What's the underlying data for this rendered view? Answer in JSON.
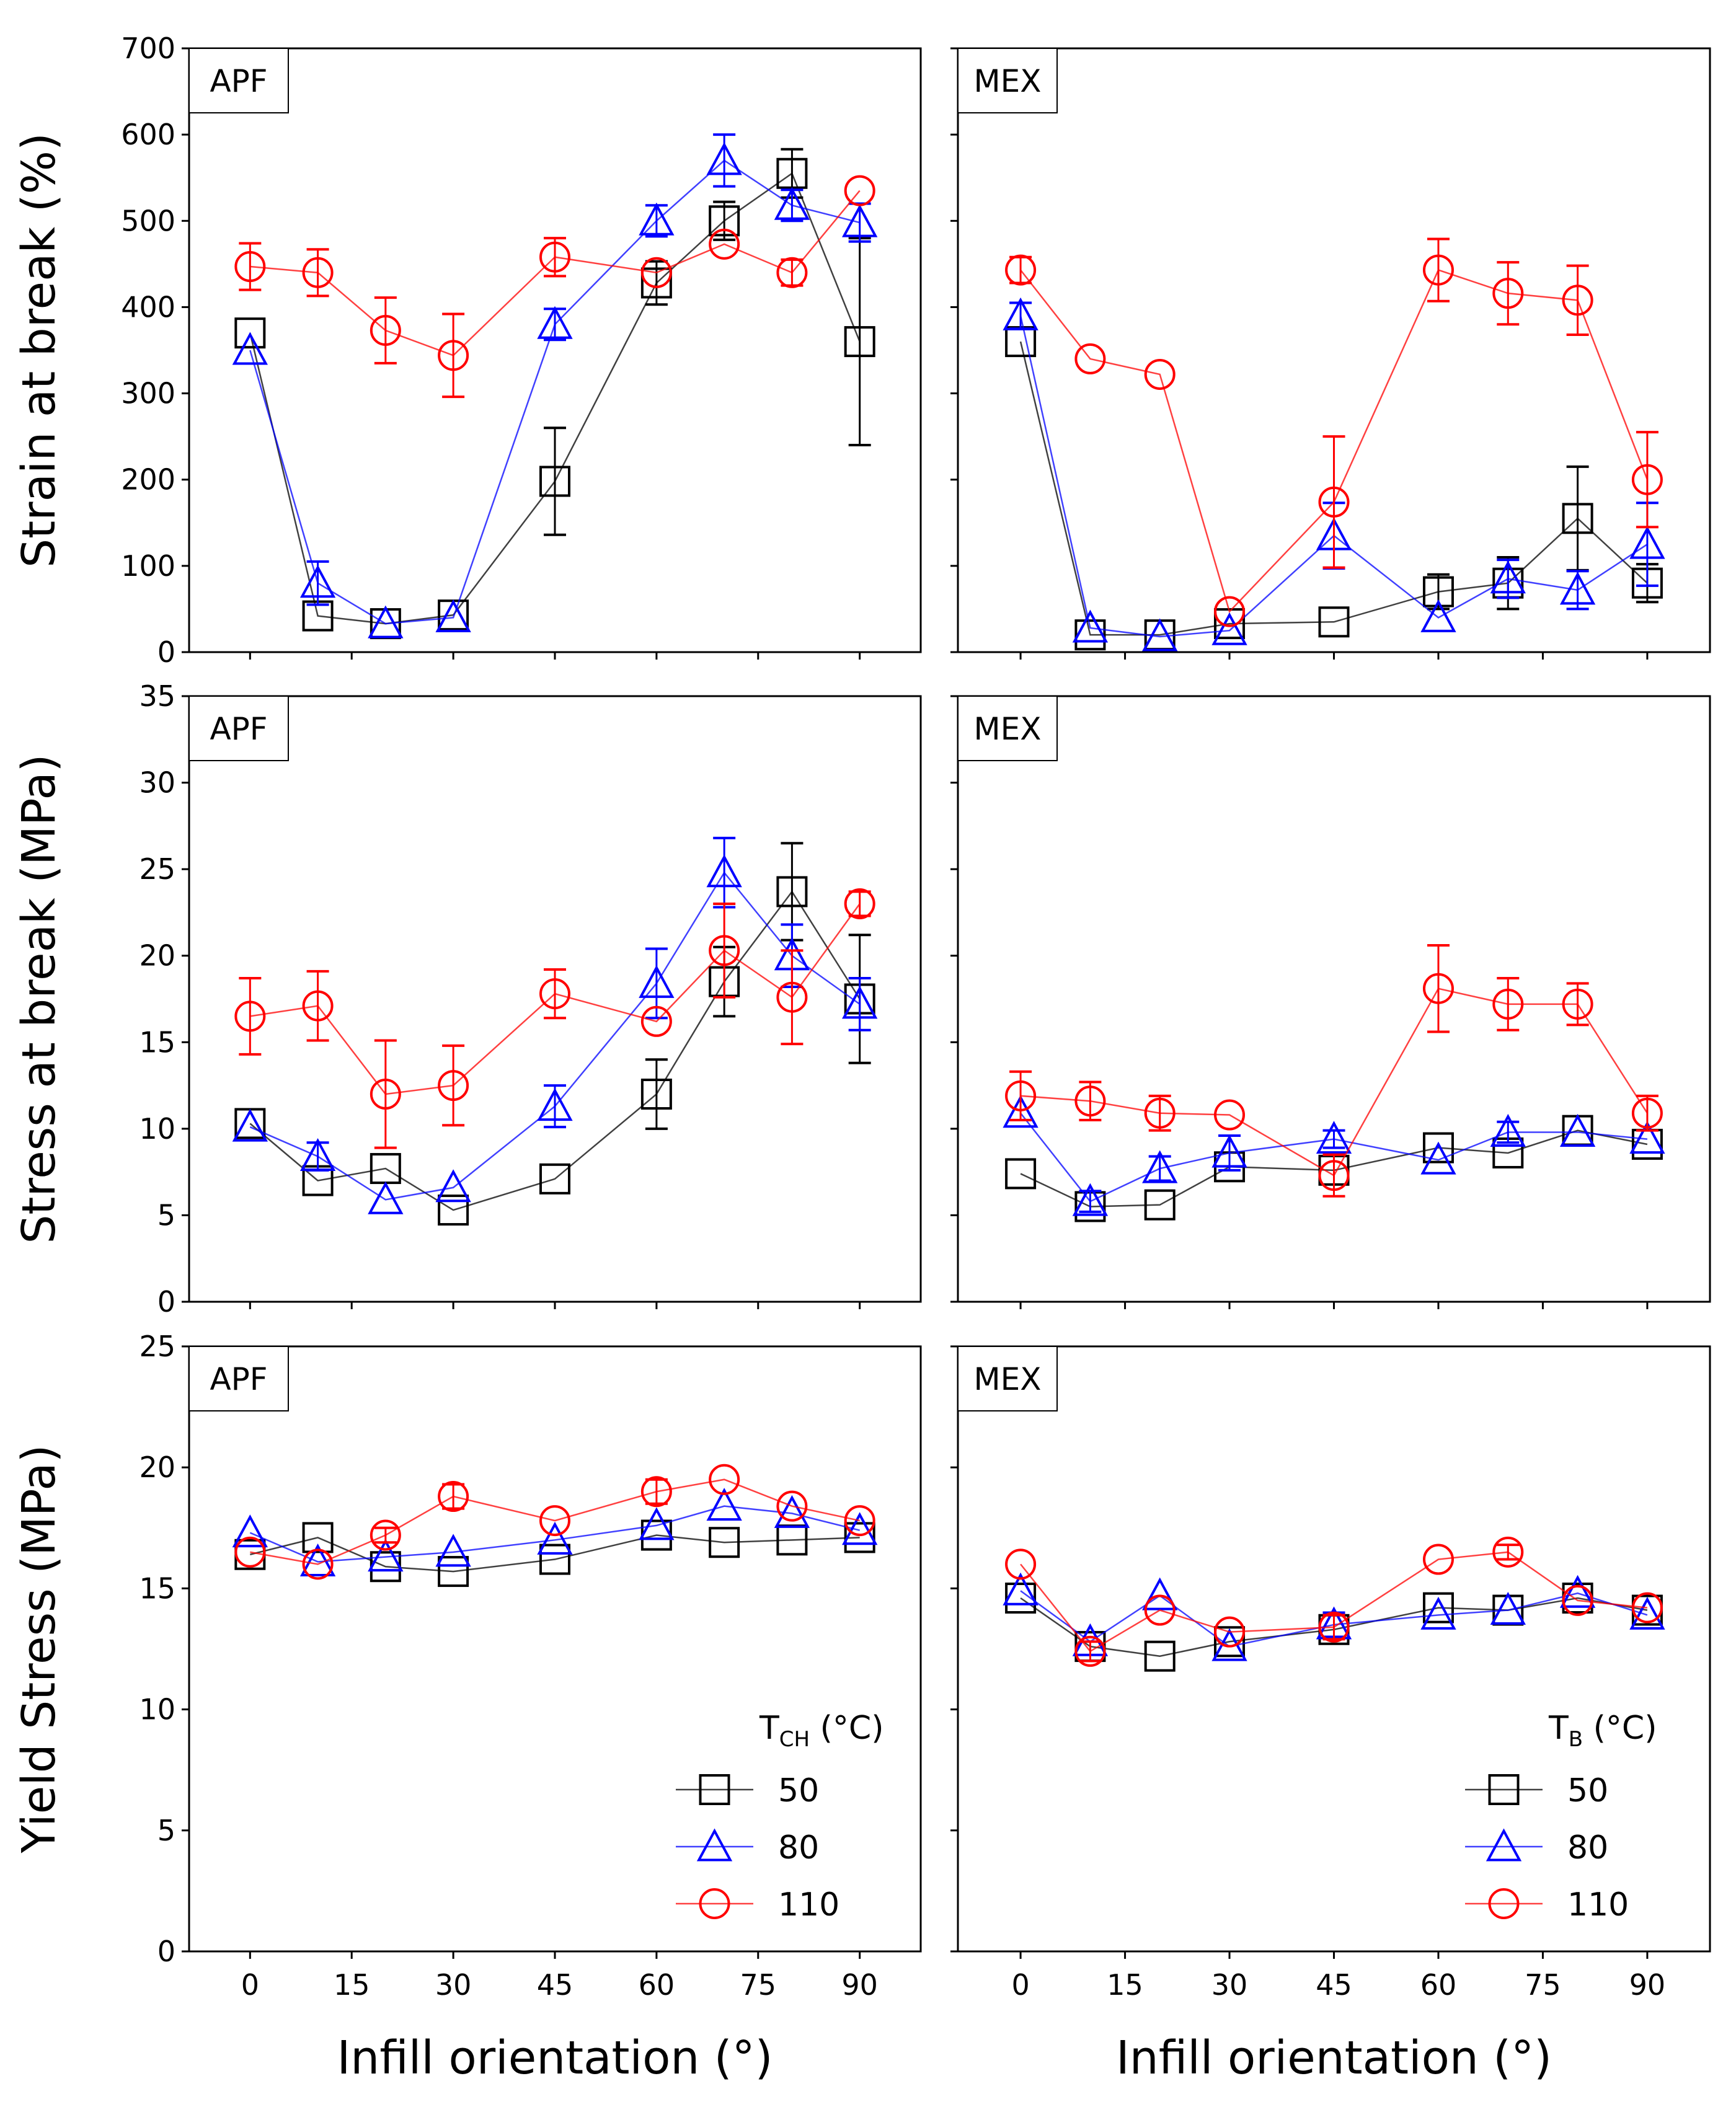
{
  "figure": {
    "xlabel": "Infill orientation (°)",
    "row_ylabels": [
      "Strain at break (%)",
      "Stress at break (MPa)",
      "Yield Stress (MPa)"
    ],
    "x_ticks": [
      0,
      15,
      30,
      45,
      60,
      75,
      90
    ],
    "row_ylims": [
      [
        0,
        700
      ],
      [
        0,
        35
      ],
      [
        0,
        25
      ]
    ],
    "row_yticks": [
      [
        0,
        100,
        200,
        300,
        400,
        500,
        600,
        700
      ],
      [
        0,
        5,
        10,
        15,
        20,
        25,
        30,
        35
      ],
      [
        0,
        5,
        10,
        15,
        20,
        25
      ]
    ],
    "legend_left": {
      "title_main": "T",
      "title_sub": "CH",
      "title_unit": " (°C)",
      "entries": [
        "50",
        "80",
        "110"
      ]
    },
    "legend_right": {
      "title_main": "T",
      "title_sub": "B",
      "title_unit": " (°C)",
      "entries": [
        "50",
        "80",
        "110"
      ]
    }
  },
  "colors": {
    "s50": "#000000",
    "s80": "#0000ff",
    "s110": "#ff0000"
  },
  "chart_data": [
    {
      "type": "line",
      "panel": "APF",
      "ylabel": "Strain at break (%)",
      "xlabel": "",
      "ylim": [
        0,
        700
      ],
      "xlim": [
        -9,
        99
      ],
      "x": [
        0,
        10,
        20,
        30,
        45,
        60,
        70,
        80,
        90
      ],
      "series": [
        {
          "name": "50",
          "values": [
            370,
            42,
            33,
            43,
            198,
            428,
            500,
            555,
            360
          ],
          "errors": [
            0,
            0,
            0,
            0,
            62,
            25,
            22,
            28,
            120
          ]
        },
        {
          "name": "80",
          "values": [
            350,
            80,
            33,
            40,
            380,
            500,
            570,
            518,
            498
          ],
          "errors": [
            0,
            25,
            0,
            0,
            18,
            18,
            30,
            18,
            22
          ]
        },
        {
          "name": "110",
          "values": [
            447,
            440,
            373,
            344,
            458,
            440,
            473,
            440,
            535
          ],
          "errors": [
            27,
            27,
            38,
            48,
            22,
            0,
            0,
            15,
            0
          ]
        }
      ]
    },
    {
      "type": "line",
      "panel": "MEX",
      "ylabel": "",
      "xlabel": "",
      "ylim": [
        0,
        700
      ],
      "xlim": [
        -9,
        99
      ],
      "x": [
        0,
        10,
        20,
        30,
        45,
        60,
        70,
        80,
        90
      ],
      "series": [
        {
          "name": "50",
          "values": [
            360,
            20,
            20,
            33,
            35,
            70,
            80,
            155,
            80
          ],
          "errors": [
            0,
            0,
            0,
            0,
            0,
            20,
            30,
            60,
            22
          ]
        },
        {
          "name": "80",
          "values": [
            390,
            28,
            18,
            25,
            135,
            40,
            85,
            72,
            125
          ],
          "errors": [
            15,
            0,
            0,
            0,
            38,
            0,
            22,
            22,
            48
          ]
        },
        {
          "name": "110",
          "values": [
            443,
            340,
            322,
            47,
            174,
            443,
            416,
            408,
            200
          ],
          "errors": [
            15,
            0,
            0,
            0,
            76,
            36,
            36,
            40,
            55
          ]
        }
      ]
    },
    {
      "type": "line",
      "panel": "APF",
      "ylabel": "Stress at break (MPa)",
      "xlabel": "",
      "ylim": [
        0,
        35
      ],
      "xlim": [
        -9,
        99
      ],
      "x": [
        0,
        10,
        20,
        30,
        45,
        60,
        70,
        80,
        90
      ],
      "series": [
        {
          "name": "50",
          "values": [
            10.3,
            7.0,
            7.7,
            5.3,
            7.1,
            12.0,
            18.5,
            23.7,
            17.5
          ],
          "errors": [
            0,
            0,
            0,
            0,
            0,
            2.0,
            2.0,
            2.8,
            3.7
          ]
        },
        {
          "name": "80",
          "values": [
            10.1,
            8.4,
            5.9,
            6.6,
            11.3,
            18.4,
            24.8,
            20.0,
            17.2
          ],
          "errors": [
            0,
            0.8,
            0,
            0,
            1.2,
            2.0,
            2.0,
            1.8,
            1.5
          ]
        },
        {
          "name": "110",
          "values": [
            16.5,
            17.1,
            12.0,
            12.5,
            17.8,
            16.2,
            20.3,
            17.6,
            23.0
          ],
          "errors": [
            2.2,
            2.0,
            3.1,
            2.3,
            1.4,
            0,
            2.7,
            2.7,
            0.7
          ]
        }
      ]
    },
    {
      "type": "line",
      "panel": "MEX",
      "ylabel": "",
      "xlabel": "",
      "ylim": [
        0,
        35
      ],
      "xlim": [
        -9,
        99
      ],
      "x": [
        0,
        10,
        20,
        30,
        45,
        60,
        70,
        80,
        90
      ],
      "series": [
        {
          "name": "50",
          "values": [
            7.4,
            5.5,
            5.6,
            7.8,
            7.6,
            8.9,
            8.6,
            9.9,
            9.1
          ],
          "errors": [
            0,
            0,
            0,
            0,
            0,
            0,
            0,
            0,
            0
          ]
        },
        {
          "name": "80",
          "values": [
            10.9,
            5.8,
            7.7,
            8.6,
            9.4,
            8.2,
            9.8,
            9.8,
            9.4
          ],
          "errors": [
            0,
            0.6,
            0.7,
            1.0,
            0.5,
            0,
            0.6,
            0,
            0
          ]
        },
        {
          "name": "110",
          "values": [
            11.9,
            11.6,
            10.9,
            10.8,
            7.3,
            18.1,
            17.2,
            17.2,
            10.9
          ],
          "errors": [
            1.4,
            1.1,
            1.0,
            0,
            1.2,
            2.5,
            1.5,
            1.2,
            1.0
          ]
        }
      ]
    },
    {
      "type": "line",
      "panel": "APF",
      "ylabel": "Yield Stress (MPa)",
      "xlabel": "Infill orientation (°)",
      "ylim": [
        0,
        25
      ],
      "xlim": [
        -9,
        99
      ],
      "x": [
        0,
        10,
        20,
        30,
        45,
        60,
        70,
        80,
        90
      ],
      "series": [
        {
          "name": "50",
          "values": [
            16.4,
            17.1,
            15.9,
            15.7,
            16.2,
            17.2,
            16.9,
            17.0,
            17.1
          ],
          "errors": [
            0,
            0,
            0,
            0,
            0,
            0,
            0,
            0,
            0
          ]
        },
        {
          "name": "80",
          "values": [
            17.3,
            16.1,
            16.3,
            16.5,
            17.0,
            17.6,
            18.4,
            18.1,
            17.4
          ],
          "errors": [
            0,
            0,
            0,
            0,
            0,
            0,
            0,
            0,
            0
          ]
        },
        {
          "name": "110",
          "values": [
            16.5,
            16.0,
            17.2,
            18.8,
            17.8,
            19.0,
            19.5,
            18.4,
            17.8
          ],
          "errors": [
            0,
            0,
            0.3,
            0.5,
            0,
            0.5,
            0,
            0,
            0
          ]
        }
      ]
    },
    {
      "type": "line",
      "panel": "MEX",
      "ylabel": "",
      "xlabel": "Infill orientation (°)",
      "ylim": [
        0,
        25
      ],
      "xlim": [
        -9,
        99
      ],
      "x": [
        0,
        10,
        20,
        30,
        45,
        60,
        70,
        80,
        90
      ],
      "series": [
        {
          "name": "50",
          "values": [
            14.6,
            12.6,
            12.2,
            12.8,
            13.3,
            14.2,
            14.1,
            14.6,
            14.1
          ],
          "errors": [
            0,
            0,
            0,
            0,
            0,
            0,
            0,
            0,
            0
          ]
        },
        {
          "name": "80",
          "values": [
            14.9,
            12.8,
            14.7,
            12.6,
            13.5,
            13.9,
            14.1,
            14.8,
            13.9
          ],
          "errors": [
            0,
            0,
            0,
            0,
            0.5,
            0,
            0,
            0,
            0
          ]
        },
        {
          "name": "110",
          "values": [
            16.0,
            12.4,
            14.1,
            13.2,
            13.4,
            16.2,
            16.5,
            14.5,
            14.2
          ],
          "errors": [
            0,
            0.4,
            0,
            0,
            0.5,
            0,
            0.3,
            0,
            0
          ]
        }
      ]
    }
  ]
}
